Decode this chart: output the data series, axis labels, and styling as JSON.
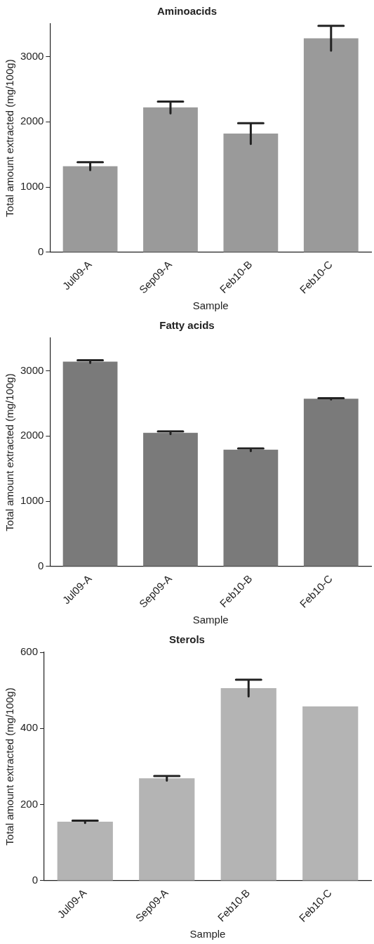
{
  "chart_data": [
    {
      "type": "bar",
      "title": "Aminoacids",
      "xlabel": "Sample",
      "ylabel": "Total amount extracted (mg/100g)",
      "categories": [
        "Jul09-A",
        "Sep09-A",
        "Feb10-B",
        "Feb10-C"
      ],
      "values": [
        1320,
        2220,
        1820,
        3280
      ],
      "errors": [
        60,
        90,
        160,
        190
      ],
      "color": "#9a9a9a",
      "ylim": [
        0,
        3500
      ],
      "yticks": [
        0,
        1000,
        2000,
        3000
      ]
    },
    {
      "type": "bar",
      "title": "Fatty acids",
      "xlabel": "Sample",
      "ylabel": "Total amount extracted (mg/100g)",
      "categories": [
        "Jul09-A",
        "Sep09-A",
        "Feb10-B",
        "Feb10-C"
      ],
      "values": [
        3140,
        2050,
        1790,
        2570
      ],
      "errors": [
        20,
        20,
        20,
        10
      ],
      "color": "#7a7a7a",
      "ylim": [
        0,
        3500
      ],
      "yticks": [
        0,
        1000,
        2000,
        3000
      ]
    },
    {
      "type": "bar",
      "title": "Sterols",
      "xlabel": "Sample",
      "ylabel": "Total amount extracted (mg/100g)",
      "categories": [
        "Jul09-A",
        "Sep09-A",
        "Feb10-B",
        "Feb10-C"
      ],
      "values": [
        155,
        269,
        506,
        458
      ],
      "errors": [
        3,
        6,
        22,
        null
      ],
      "color": "#b4b4b4",
      "ylim": [
        0,
        600
      ],
      "yticks": [
        0,
        200,
        400,
        600
      ]
    }
  ]
}
